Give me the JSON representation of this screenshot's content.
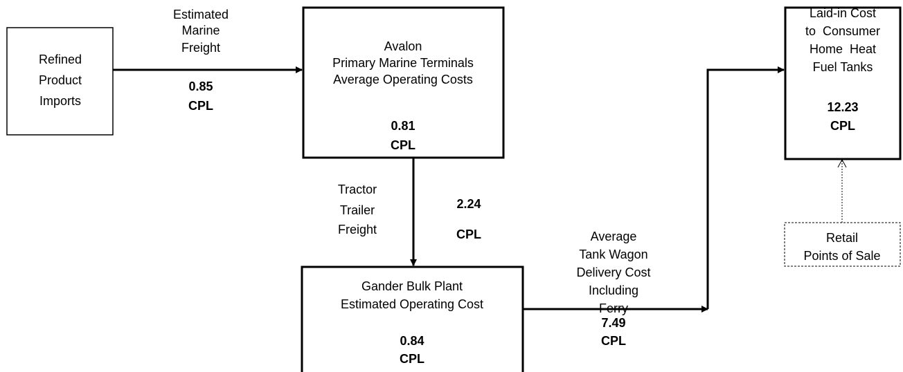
{
  "nodes": [
    {
      "lines": [
        "Refined",
        "Product",
        "Imports"
      ]
    },
    {
      "lines": [
        "Avalon",
        "Primary Marine Terminals",
        "Average Operating Costs"
      ],
      "value": 0.81,
      "unit": "CPL"
    },
    {
      "lines": [
        "Gander Bulk Plant",
        "Estimated Operating Cost"
      ],
      "value": 0.84,
      "unit": "CPL"
    },
    {
      "lines": [
        "Laid-in Cost",
        "to  Consumer",
        "Home  Heat",
        "Fuel Tanks"
      ],
      "value": 12.23,
      "unit": "CPL"
    },
    {
      "lines": [
        "Retail",
        "Points of Sale"
      ]
    }
  ],
  "edges": [
    {
      "lines": [
        "Estimated",
        "Marine",
        "Freight"
      ],
      "value": 0.85,
      "unit": "CPL"
    },
    {
      "lines": [
        "Tractor",
        "Trailer",
        "Freight"
      ],
      "value": 2.24,
      "unit": "CPL"
    },
    {
      "lines": [
        "Average",
        "Tank Wagon",
        "Delivery Cost",
        "Including",
        "Ferry"
      ],
      "value": 7.49,
      "unit": "CPL"
    }
  ]
}
